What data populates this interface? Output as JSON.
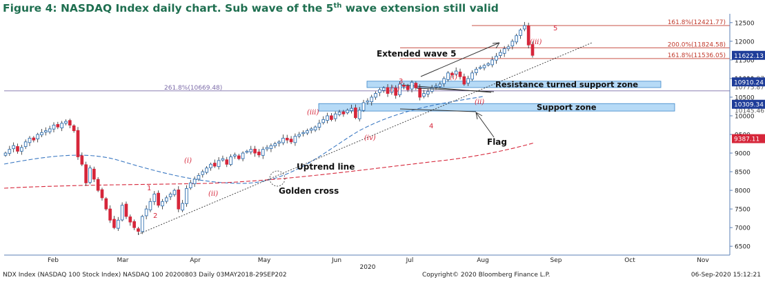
{
  "title": {
    "prefix": "Figure 4: NASDAQ Index daily chart. Sub wave of the 5",
    "sup": "th",
    "suffix": " wave extension still valid"
  },
  "chart_data": {
    "type": "candlestick",
    "title": "Figure 4: NASDAQ Index daily chart. Sub wave of the 5th wave extension still valid",
    "x_axis": {
      "ticks": [
        "Feb",
        "Mar",
        "Apr",
        "May",
        "Jun",
        "Jul",
        "Aug",
        "Sep",
        "Oct",
        "Nov"
      ],
      "year_label": "2020"
    },
    "y_axis": {
      "range": [
        6300,
        12700
      ],
      "ticks": [
        6500,
        7000,
        7500,
        8000,
        8500,
        9000,
        9500,
        10000,
        10500,
        11000,
        11500,
        12000,
        12500
      ],
      "tick_labels": [
        "6500",
        "7000",
        "7500",
        "8000",
        "8500",
        "9000",
        "9500",
        "10000",
        "10500",
        "11000",
        "11500",
        "12000",
        "12500"
      ]
    },
    "series": [
      {
        "name": "NDX Index",
        "values": [
          9000,
          9100,
          9200,
          9050,
          9150,
          9300,
          9400,
          9350,
          9500,
          9550,
          9600,
          9650,
          9750,
          9700,
          9800,
          9850,
          9750,
          9600,
          8900,
          8700,
          8200,
          8600,
          8300,
          8000,
          7800,
          7500,
          7200,
          7000,
          7200,
          7600,
          7300,
          7150,
          7000,
          6900,
          7300,
          7500,
          7700,
          7900,
          7600,
          7700,
          7800,
          7900,
          8000,
          7500,
          7650,
          8050,
          8200,
          8300,
          8400,
          8500,
          8600,
          8700,
          8650,
          8800,
          8850,
          8700,
          8900,
          8950,
          8850,
          9000,
          9050,
          9100,
          9000,
          8950,
          9100,
          9150,
          9200,
          9250,
          9300,
          9400,
          9350,
          9300,
          9450,
          9500,
          9550,
          9600,
          9650,
          9700,
          9800,
          9900,
          10000,
          9900,
          10050,
          10100,
          10050,
          10150,
          10200,
          9950,
          10150,
          10350,
          10400,
          10500,
          10600,
          10700,
          10750,
          10600,
          10750,
          10550,
          10850,
          10800,
          10700,
          10900,
          10750,
          10500,
          10600,
          10650,
          10750,
          10800,
          10850,
          11000,
          11150,
          11100,
          11200,
          11050,
          10850,
          11000,
          11150,
          11250,
          11300,
          11350,
          11400,
          11500,
          11600,
          11700,
          11800,
          11850,
          12000,
          12150,
          12300,
          12420,
          11900,
          11622.13
        ]
      }
    ],
    "current_price_labels": [
      {
        "value": 11622.13,
        "label": "11622.13",
        "color": "#1f3d99"
      },
      {
        "value": 10910.24,
        "label": "10910.24",
        "color": "#1f3d99"
      },
      {
        "value": 10309.34,
        "label": "10309.34",
        "color": "#1f3d99"
      },
      {
        "value": 9387.11,
        "label": "9387.11",
        "color": "#d6263a"
      }
    ],
    "axis_label_fragments": [
      "11011.97",
      "10775.87",
      "10145.46"
    ],
    "fibonacci_levels": [
      {
        "label": "161.8%(12421.77)",
        "value": 12421.77
      },
      {
        "label": "200.0%(11824.58)",
        "value": 11824.58
      },
      {
        "label": "161.8%(11536.05)",
        "value": 11536.05
      },
      {
        "label": "261.8%(10669.48)",
        "value": 10669.48
      }
    ],
    "zones": [
      {
        "label": "Resistance turned support zone",
        "low": 10775.87,
        "high": 10910.24
      },
      {
        "label": "Support zone",
        "low": 10145.46,
        "high": 10309.34
      }
    ],
    "moving_averages": [
      "blue dashed",
      "red dashed"
    ],
    "annotations": {
      "extended_wave": "Extended wave 5",
      "uptrend_line": "Uptrend line",
      "golden_cross": "Golden cross",
      "flag": "Flag",
      "wave_labels_red": [
        "1",
        "2",
        "3",
        "4",
        "5"
      ],
      "wave_labels_italic": [
        "(i)",
        "(ii)",
        "(iii)",
        "(iv)",
        "(v)",
        "(i)",
        "(ii)",
        "(iii)"
      ]
    }
  },
  "footer": {
    "left": "NDX Index (NASDAQ 100 Stock Index) NASDAQ 100 20200803  Daily 03MAY2018-29SEP202",
    "center": "Copyright© 2020 Bloomberg Finance L.P.",
    "right": "06-Sep-2020 15:12:21"
  },
  "colors": {
    "title": "#1f6f50",
    "bull_candle": "#2f6fb0",
    "bear_candle": "#d6263a",
    "zone_fill": "#a9d4f5",
    "fib_red": "#c0392b",
    "fib_purple": "#7b6aa8"
  }
}
